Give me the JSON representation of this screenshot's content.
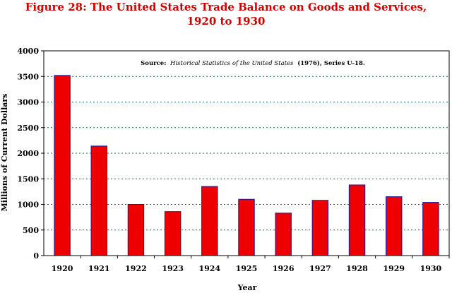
{
  "chart_data": {
    "type": "bar",
    "title_line1": "Figure 28: The United States Trade Balance on Goods and Services,",
    "title_line2": "1920 to 1930",
    "source": {
      "prefix": "Source:",
      "title": "Historical Statistics of the United States",
      "suffix": "(1976), Series U-18."
    },
    "xlabel": "Year",
    "ylabel": "Millions of Current Dollars",
    "categories": [
      "1920",
      "1921",
      "1922",
      "1923",
      "1924",
      "1925",
      "1926",
      "1927",
      "1928",
      "1929",
      "1930"
    ],
    "values": [
      3520,
      2140,
      1000,
      860,
      1350,
      1100,
      830,
      1080,
      1380,
      1150,
      1040
    ],
    "ylim": [
      0,
      4000
    ],
    "yticks": [
      0,
      500,
      1000,
      1500,
      2000,
      2500,
      3000,
      3500,
      4000
    ],
    "grid": true,
    "bar_color": "#ee0000",
    "bar_edge_color": "#1a1a9a",
    "title_color": "#d40000",
    "grid_color": "#1a6a6a"
  }
}
